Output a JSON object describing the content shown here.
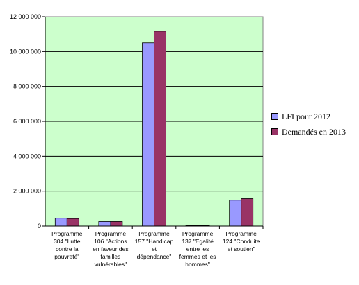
{
  "chart_data": {
    "type": "bar",
    "categories": [
      "Programme 304 \"Lutte contre la pauvreté\"",
      "Programme 106 \"Actions en faveur des familles vulnérables\"",
      "Programme 157 \"Handicap et dépendance\"",
      "Programme 137 \"Egalité entre les femmes et les hommes\"",
      "Programme 124 \"Conduite et soutien\""
    ],
    "series": [
      {
        "name": "LFI pour 2012",
        "values": [
          450000,
          260000,
          10500000,
          25000,
          1480000
        ],
        "color": "#9999ff"
      },
      {
        "name": "Demandés en 2013",
        "values": [
          430000,
          260000,
          11170000,
          25000,
          1570000
        ],
        "color": "#993366"
      }
    ],
    "ylim": [
      0,
      12000000
    ],
    "yticks": [
      0,
      2000000,
      4000000,
      6000000,
      8000000,
      10000000,
      12000000
    ],
    "ytick_labels": [
      "0",
      "2 000 000",
      "4 000 000",
      "6 000 000",
      "8 000 000",
      "10 000 000",
      "12 000 000"
    ],
    "grid": true,
    "legend_position": "right",
    "plot_background": "#ccffcc"
  },
  "legend": {
    "items": [
      "LFI pour 2012",
      "Demandés en 2013"
    ]
  },
  "category_lines": [
    [
      "Programme",
      "304 \"Lutte",
      "contre la",
      "pauvreté\""
    ],
    [
      "Programme",
      "106 \"Actions",
      "en faveur des",
      "familles",
      "vulnérables\""
    ],
    [
      "Programme",
      "157 \"Handicap",
      "et",
      "dépendance\""
    ],
    [
      "Programme",
      "137 \"Egalité",
      "entre les",
      "femmes et les",
      "hommes\""
    ],
    [
      "Programme",
      "124 \"Conduite",
      "et soutien\""
    ]
  ]
}
